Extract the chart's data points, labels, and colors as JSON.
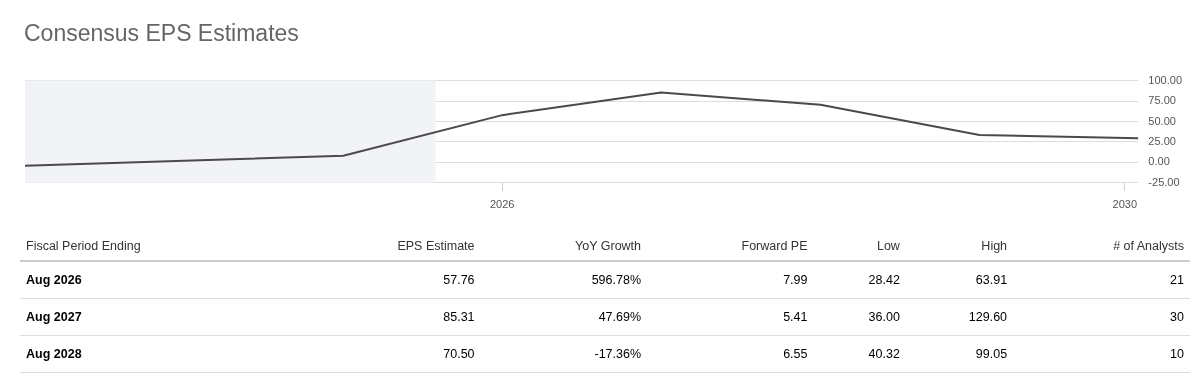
{
  "chart_data": [
    {
      "type": "line",
      "title": "Consensus EPS Estimates",
      "x": [
        "2023-08",
        "2025-08",
        "2026-08",
        "2027-08",
        "2028-08",
        "2029-08",
        "2030-08"
      ],
      "series": [
        {
          "color": "#4a4a4a",
          "values": [
            -4,
            8,
            57.76,
            85.31,
            70.5,
            33.5,
            29.5
          ]
        }
      ],
      "xlim": [
        "2023-08",
        "2030-08"
      ],
      "xticks": [
        {
          "value": "2026-08",
          "label": "2026"
        },
        {
          "value": "2030-07",
          "label": "2030"
        }
      ],
      "ylim": [
        -25,
        100
      ],
      "yticks": [
        {
          "value": -25,
          "label": "-25.00"
        },
        {
          "value": 0,
          "label": "0.00"
        },
        {
          "value": 25,
          "label": "25.00"
        },
        {
          "value": 50,
          "label": "50.00"
        },
        {
          "value": 75,
          "label": "75.00"
        },
        {
          "value": 100,
          "label": "100.00"
        }
      ],
      "bands": [
        {
          "axis": "x",
          "from": "2023-08",
          "to": "2026-03",
          "color": "#f2f3f6"
        }
      ],
      "grid": "y",
      "legend": false,
      "marker": "none",
      "line_style": "solid"
    },
    {
      "type": "other",
      "annotations": [
        "Fiscal Period Ending",
        "EPS Estimate",
        "YoY Growth",
        "Forward PE",
        "Low",
        "High",
        "# of Analysts",
        "Aug 2026",
        "57.76",
        "596.78%",
        "7.99",
        "28.42",
        "63.91",
        "21",
        "Aug 2027",
        "85.31",
        "47.69%",
        "5.41",
        "36.00",
        "129.60",
        "30",
        "Aug 2028",
        "70.50",
        "-17.36%",
        "6.55",
        "40.32",
        "99.05",
        "10"
      ]
    }
  ]
}
